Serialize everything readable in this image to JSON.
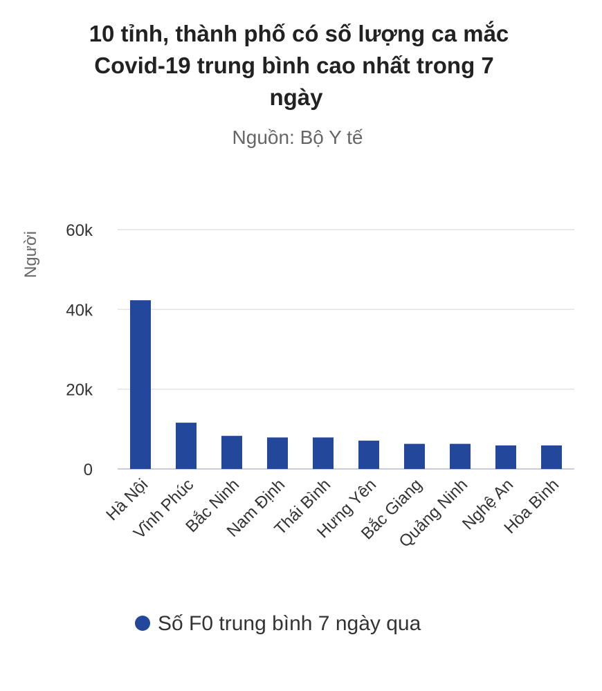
{
  "chart_data": {
    "type": "bar",
    "title_lines": [
      "10 tỉnh, thành phố có số lượng ca mắc",
      "Covid-19 trung bình cao nhất trong 7",
      "ngày"
    ],
    "subtitle": "Nguồn: Bộ Y tế",
    "ylabel": "Người",
    "xlabel": "",
    "ylim": [
      0,
      60000
    ],
    "yticks": [
      {
        "value": 0,
        "label": "0"
      },
      {
        "value": 20000,
        "label": "20k"
      },
      {
        "value": 40000,
        "label": "40k"
      },
      {
        "value": 60000,
        "label": "60k"
      }
    ],
    "categories": [
      "Hà Nội",
      "Vĩnh Phúc",
      "Bắc Ninh",
      "Nam Định",
      "Thái Bình",
      "Hưng Yên",
      "Bắc Giang",
      "Quảng Ninh",
      "Nghệ An",
      "Hòa Bình"
    ],
    "series": [
      {
        "name": "Số F0 trung bình 7 ngày qua",
        "color": "#23479a",
        "values": [
          42300,
          11600,
          8300,
          7900,
          7900,
          7100,
          6300,
          6300,
          5900,
          5900
        ]
      }
    ],
    "grid": true,
    "legend_position": "bottom"
  }
}
